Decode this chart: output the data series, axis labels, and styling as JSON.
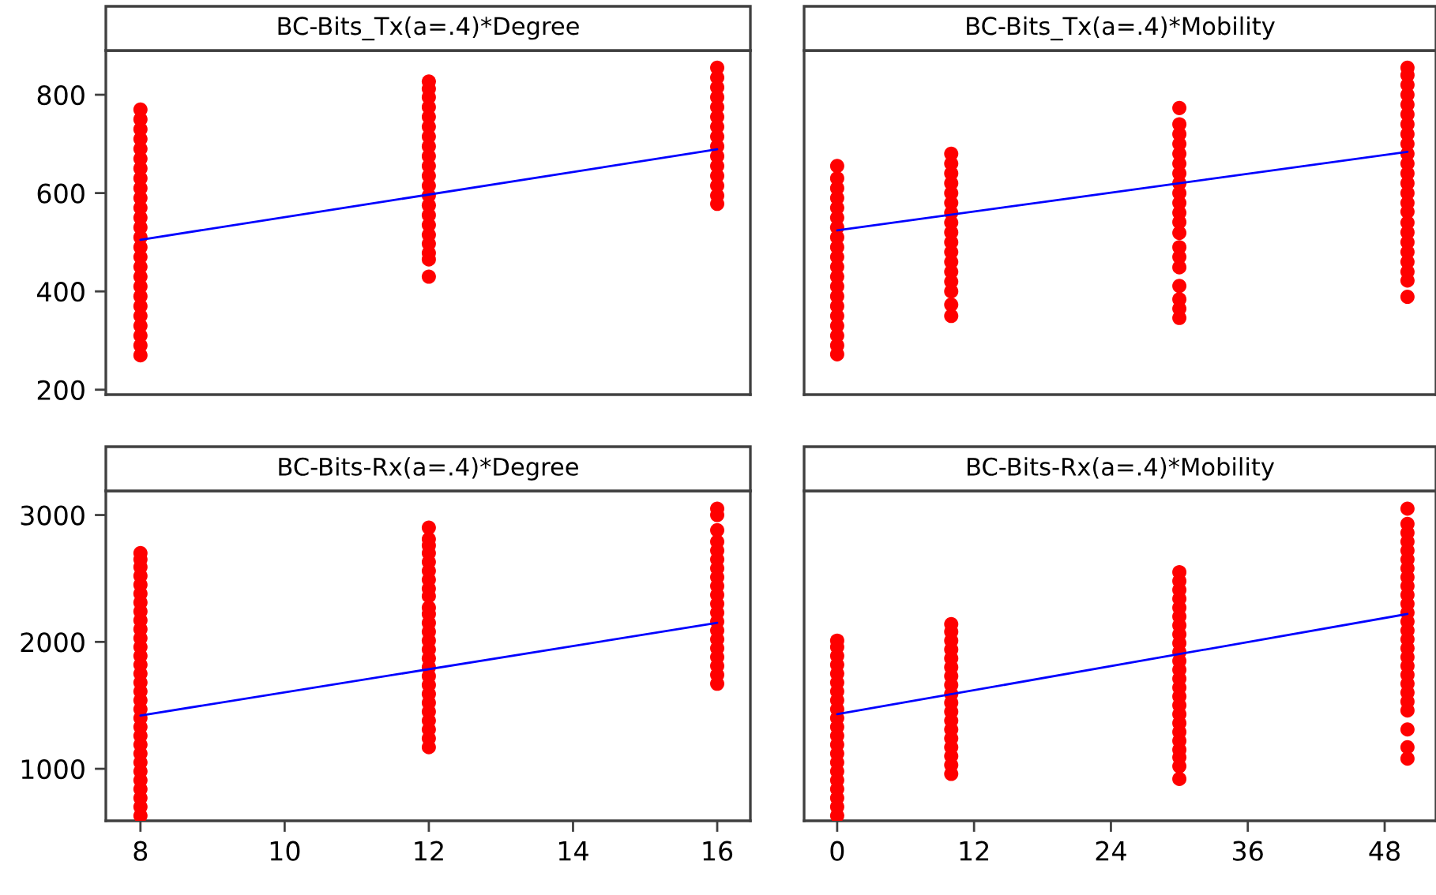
{
  "chart_data": [
    {
      "type": "scatter",
      "title": "BC-Bits_Tx(a=.4)*Degree",
      "xlim": [
        7.52,
        16.46
      ],
      "ylim": [
        190,
        890
      ],
      "yticks": [
        200,
        400,
        600,
        800
      ],
      "tick_labels": "y",
      "series": [
        {
          "type": "scatter",
          "color": "#ff0000",
          "marker": "circle",
          "x": [
            8,
            8,
            8,
            8,
            8,
            8,
            8,
            8,
            8,
            8,
            8,
            8,
            8,
            8,
            8,
            8,
            8,
            8,
            8,
            8,
            8,
            8,
            8,
            8,
            8,
            8
          ],
          "values": [
            270,
            290,
            310,
            330,
            350,
            370,
            390,
            410,
            430,
            450,
            470,
            490,
            510,
            530,
            550,
            570,
            590,
            610,
            630,
            650,
            670,
            690,
            710,
            730,
            750,
            770
          ]
        },
        {
          "type": "scatter",
          "color": "#ff0000",
          "marker": "circle",
          "x": [
            12,
            12,
            12,
            12,
            12,
            12,
            12,
            12,
            12,
            12,
            12,
            12,
            12,
            12,
            12,
            12,
            12,
            12,
            12,
            12,
            12
          ],
          "values": [
            430,
            465,
            478,
            497,
            515,
            535,
            555,
            575,
            595,
            615,
            635,
            655,
            675,
            695,
            715,
            735,
            755,
            775,
            795,
            812,
            827
          ]
        },
        {
          "type": "scatter",
          "color": "#ff0000",
          "marker": "circle",
          "x": [
            16,
            16,
            16,
            16,
            16,
            16,
            16,
            16,
            16,
            16,
            16,
            16,
            16,
            16,
            16
          ],
          "values": [
            578,
            595,
            615,
            635,
            655,
            675,
            695,
            715,
            735,
            755,
            775,
            795,
            815,
            835,
            855
          ]
        },
        {
          "type": "line",
          "color": "#0000ff",
          "x": [
            8,
            16
          ],
          "values": [
            505,
            689
          ]
        }
      ]
    },
    {
      "type": "scatter",
      "title": "BC-Bits_Tx(a=.4)*Mobility",
      "xlim": [
        -2.9,
        52.5
      ],
      "ylim": [
        190,
        890
      ],
      "tick_labels": false,
      "series": [
        {
          "type": "scatter",
          "color": "#ff0000",
          "marker": "circle",
          "x": [
            0,
            0,
            0,
            0,
            0,
            0,
            0,
            0,
            0,
            0,
            0,
            0,
            0,
            0,
            0,
            0,
            0,
            0,
            0,
            0
          ],
          "values": [
            272,
            290,
            310,
            330,
            350,
            370,
            390,
            410,
            430,
            450,
            470,
            490,
            510,
            530,
            550,
            570,
            590,
            610,
            630,
            655
          ]
        },
        {
          "type": "scatter",
          "color": "#ff0000",
          "marker": "circle",
          "x": [
            10,
            10,
            10,
            10,
            10,
            10,
            10,
            10,
            10,
            10,
            10,
            10,
            10,
            10,
            10,
            10,
            10
          ],
          "values": [
            350,
            373,
            400,
            420,
            440,
            460,
            480,
            500,
            520,
            540,
            560,
            580,
            600,
            620,
            640,
            660,
            680
          ]
        },
        {
          "type": "scatter",
          "color": "#ff0000",
          "marker": "circle",
          "x": [
            30,
            30,
            30,
            30,
            30,
            30,
            30,
            30,
            30,
            30,
            30,
            30,
            30,
            30,
            30,
            30,
            30,
            30,
            30,
            30
          ],
          "values": [
            346,
            365,
            384,
            411,
            449,
            470,
            490,
            519,
            541,
            560,
            580,
            600,
            620,
            640,
            660,
            680,
            700,
            720,
            740,
            773
          ]
        },
        {
          "type": "scatter",
          "color": "#ff0000",
          "marker": "circle",
          "x": [
            50,
            50,
            50,
            50,
            50,
            50,
            50,
            50,
            50,
            50,
            50,
            50,
            50,
            50,
            50,
            50,
            50,
            50,
            50,
            50,
            50,
            50,
            50,
            50
          ],
          "values": [
            389,
            422,
            440,
            460,
            480,
            500,
            520,
            540,
            562,
            580,
            600,
            620,
            640,
            660,
            680,
            700,
            720,
            740,
            760,
            780,
            800,
            820,
            840,
            855
          ]
        },
        {
          "type": "line",
          "color": "#0000ff",
          "x": [
            0,
            50
          ],
          "values": [
            524,
            684
          ]
        }
      ]
    },
    {
      "type": "scatter",
      "title": "BC-Bits-Rx(a=.4)*Degree",
      "xlim": [
        7.52,
        16.46
      ],
      "ylim": [
        590,
        3190
      ],
      "xticks": [
        8,
        10,
        12,
        14,
        16
      ],
      "yticks": [
        1000,
        2000,
        3000
      ],
      "series": [
        {
          "type": "scatter",
          "color": "#ff0000",
          "marker": "circle",
          "x": [
            8,
            8,
            8,
            8,
            8,
            8,
            8,
            8,
            8,
            8,
            8,
            8,
            8,
            8,
            8,
            8,
            8,
            8,
            8,
            8,
            8,
            8,
            8,
            8,
            8,
            8,
            8,
            8,
            8,
            8,
            8
          ],
          "values": [
            630,
            700,
            770,
            840,
            910,
            980,
            1050,
            1120,
            1190,
            1260,
            1330,
            1400,
            1470,
            1540,
            1610,
            1680,
            1750,
            1820,
            1890,
            1960,
            2030,
            2100,
            2170,
            2240,
            2310,
            2380,
            2450,
            2520,
            2590,
            2650,
            2700
          ]
        },
        {
          "type": "scatter",
          "color": "#ff0000",
          "marker": "circle",
          "x": [
            12,
            12,
            12,
            12,
            12,
            12,
            12,
            12,
            12,
            12,
            12,
            12,
            12,
            12,
            12,
            12,
            12,
            12,
            12,
            12,
            12,
            12,
            12,
            12,
            12,
            12
          ],
          "values": [
            1170,
            1240,
            1310,
            1380,
            1450,
            1520,
            1590,
            1660,
            1730,
            1800,
            1870,
            1940,
            2010,
            2080,
            2150,
            2220,
            2270,
            2360,
            2420,
            2490,
            2560,
            2630,
            2700,
            2760,
            2810,
            2900
          ]
        },
        {
          "type": "scatter",
          "color": "#ff0000",
          "marker": "circle",
          "x": [
            16,
            16,
            16,
            16,
            16,
            16,
            16,
            16,
            16,
            16,
            16,
            16,
            16,
            16,
            16,
            16,
            16,
            16,
            16,
            16
          ],
          "values": [
            1670,
            1740,
            1810,
            1880,
            1950,
            2020,
            2090,
            2160,
            2230,
            2300,
            2370,
            2440,
            2510,
            2580,
            2650,
            2720,
            2790,
            2880,
            3000,
            3050
          ]
        },
        {
          "type": "line",
          "color": "#0000ff",
          "x": [
            8,
            16
          ],
          "values": [
            1420,
            2150
          ]
        }
      ]
    },
    {
      "type": "scatter",
      "title": "BC-Bits-Rx(a=.4)*Mobility",
      "xlim": [
        -2.9,
        52.5
      ],
      "ylim": [
        590,
        3190
      ],
      "xticks": [
        0,
        12,
        24,
        36,
        48
      ],
      "tick_labels": "x",
      "series": [
        {
          "type": "scatter",
          "color": "#ff0000",
          "marker": "circle",
          "x": [
            0,
            0,
            0,
            0,
            0,
            0,
            0,
            0,
            0,
            0,
            0,
            0,
            0,
            0,
            0,
            0,
            0,
            0,
            0,
            0,
            0
          ],
          "values": [
            630,
            700,
            770,
            840,
            910,
            980,
            1050,
            1120,
            1190,
            1260,
            1330,
            1400,
            1470,
            1540,
            1610,
            1680,
            1750,
            1820,
            1890,
            1960,
            2010
          ]
        },
        {
          "type": "scatter",
          "color": "#ff0000",
          "marker": "circle",
          "x": [
            10,
            10,
            10,
            10,
            10,
            10,
            10,
            10,
            10,
            10,
            10,
            10,
            10,
            10,
            10,
            10,
            10,
            10
          ],
          "values": [
            960,
            1030,
            1100,
            1170,
            1240,
            1310,
            1380,
            1450,
            1520,
            1590,
            1660,
            1730,
            1800,
            1870,
            1940,
            2010,
            2080,
            2140
          ]
        },
        {
          "type": "scatter",
          "color": "#ff0000",
          "marker": "circle",
          "x": [
            30,
            30,
            30,
            30,
            30,
            30,
            30,
            30,
            30,
            30,
            30,
            30,
            30,
            30,
            30,
            30,
            30,
            30,
            30,
            30,
            30,
            30,
            30,
            30
          ],
          "values": [
            920,
            1020,
            1090,
            1150,
            1220,
            1290,
            1360,
            1430,
            1500,
            1570,
            1640,
            1710,
            1780,
            1850,
            1920,
            1990,
            2060,
            2130,
            2200,
            2270,
            2340,
            2410,
            2480,
            2550
          ]
        },
        {
          "type": "scatter",
          "color": "#ff0000",
          "marker": "circle",
          "x": [
            50,
            50,
            50,
            50,
            50,
            50,
            50,
            50,
            50,
            50,
            50,
            50,
            50,
            50,
            50,
            50,
            50,
            50,
            50,
            50,
            50,
            50,
            50,
            50,
            50,
            50
          ],
          "values": [
            1080,
            1170,
            1310,
            1460,
            1530,
            1600,
            1670,
            1740,
            1810,
            1880,
            1950,
            2020,
            2090,
            2160,
            2230,
            2300,
            2370,
            2440,
            2510,
            2580,
            2650,
            2720,
            2790,
            2860,
            2930,
            3050
          ]
        },
        {
          "type": "line",
          "color": "#0000ff",
          "x": [
            0,
            50
          ],
          "values": [
            1430,
            2220
          ]
        }
      ]
    }
  ]
}
